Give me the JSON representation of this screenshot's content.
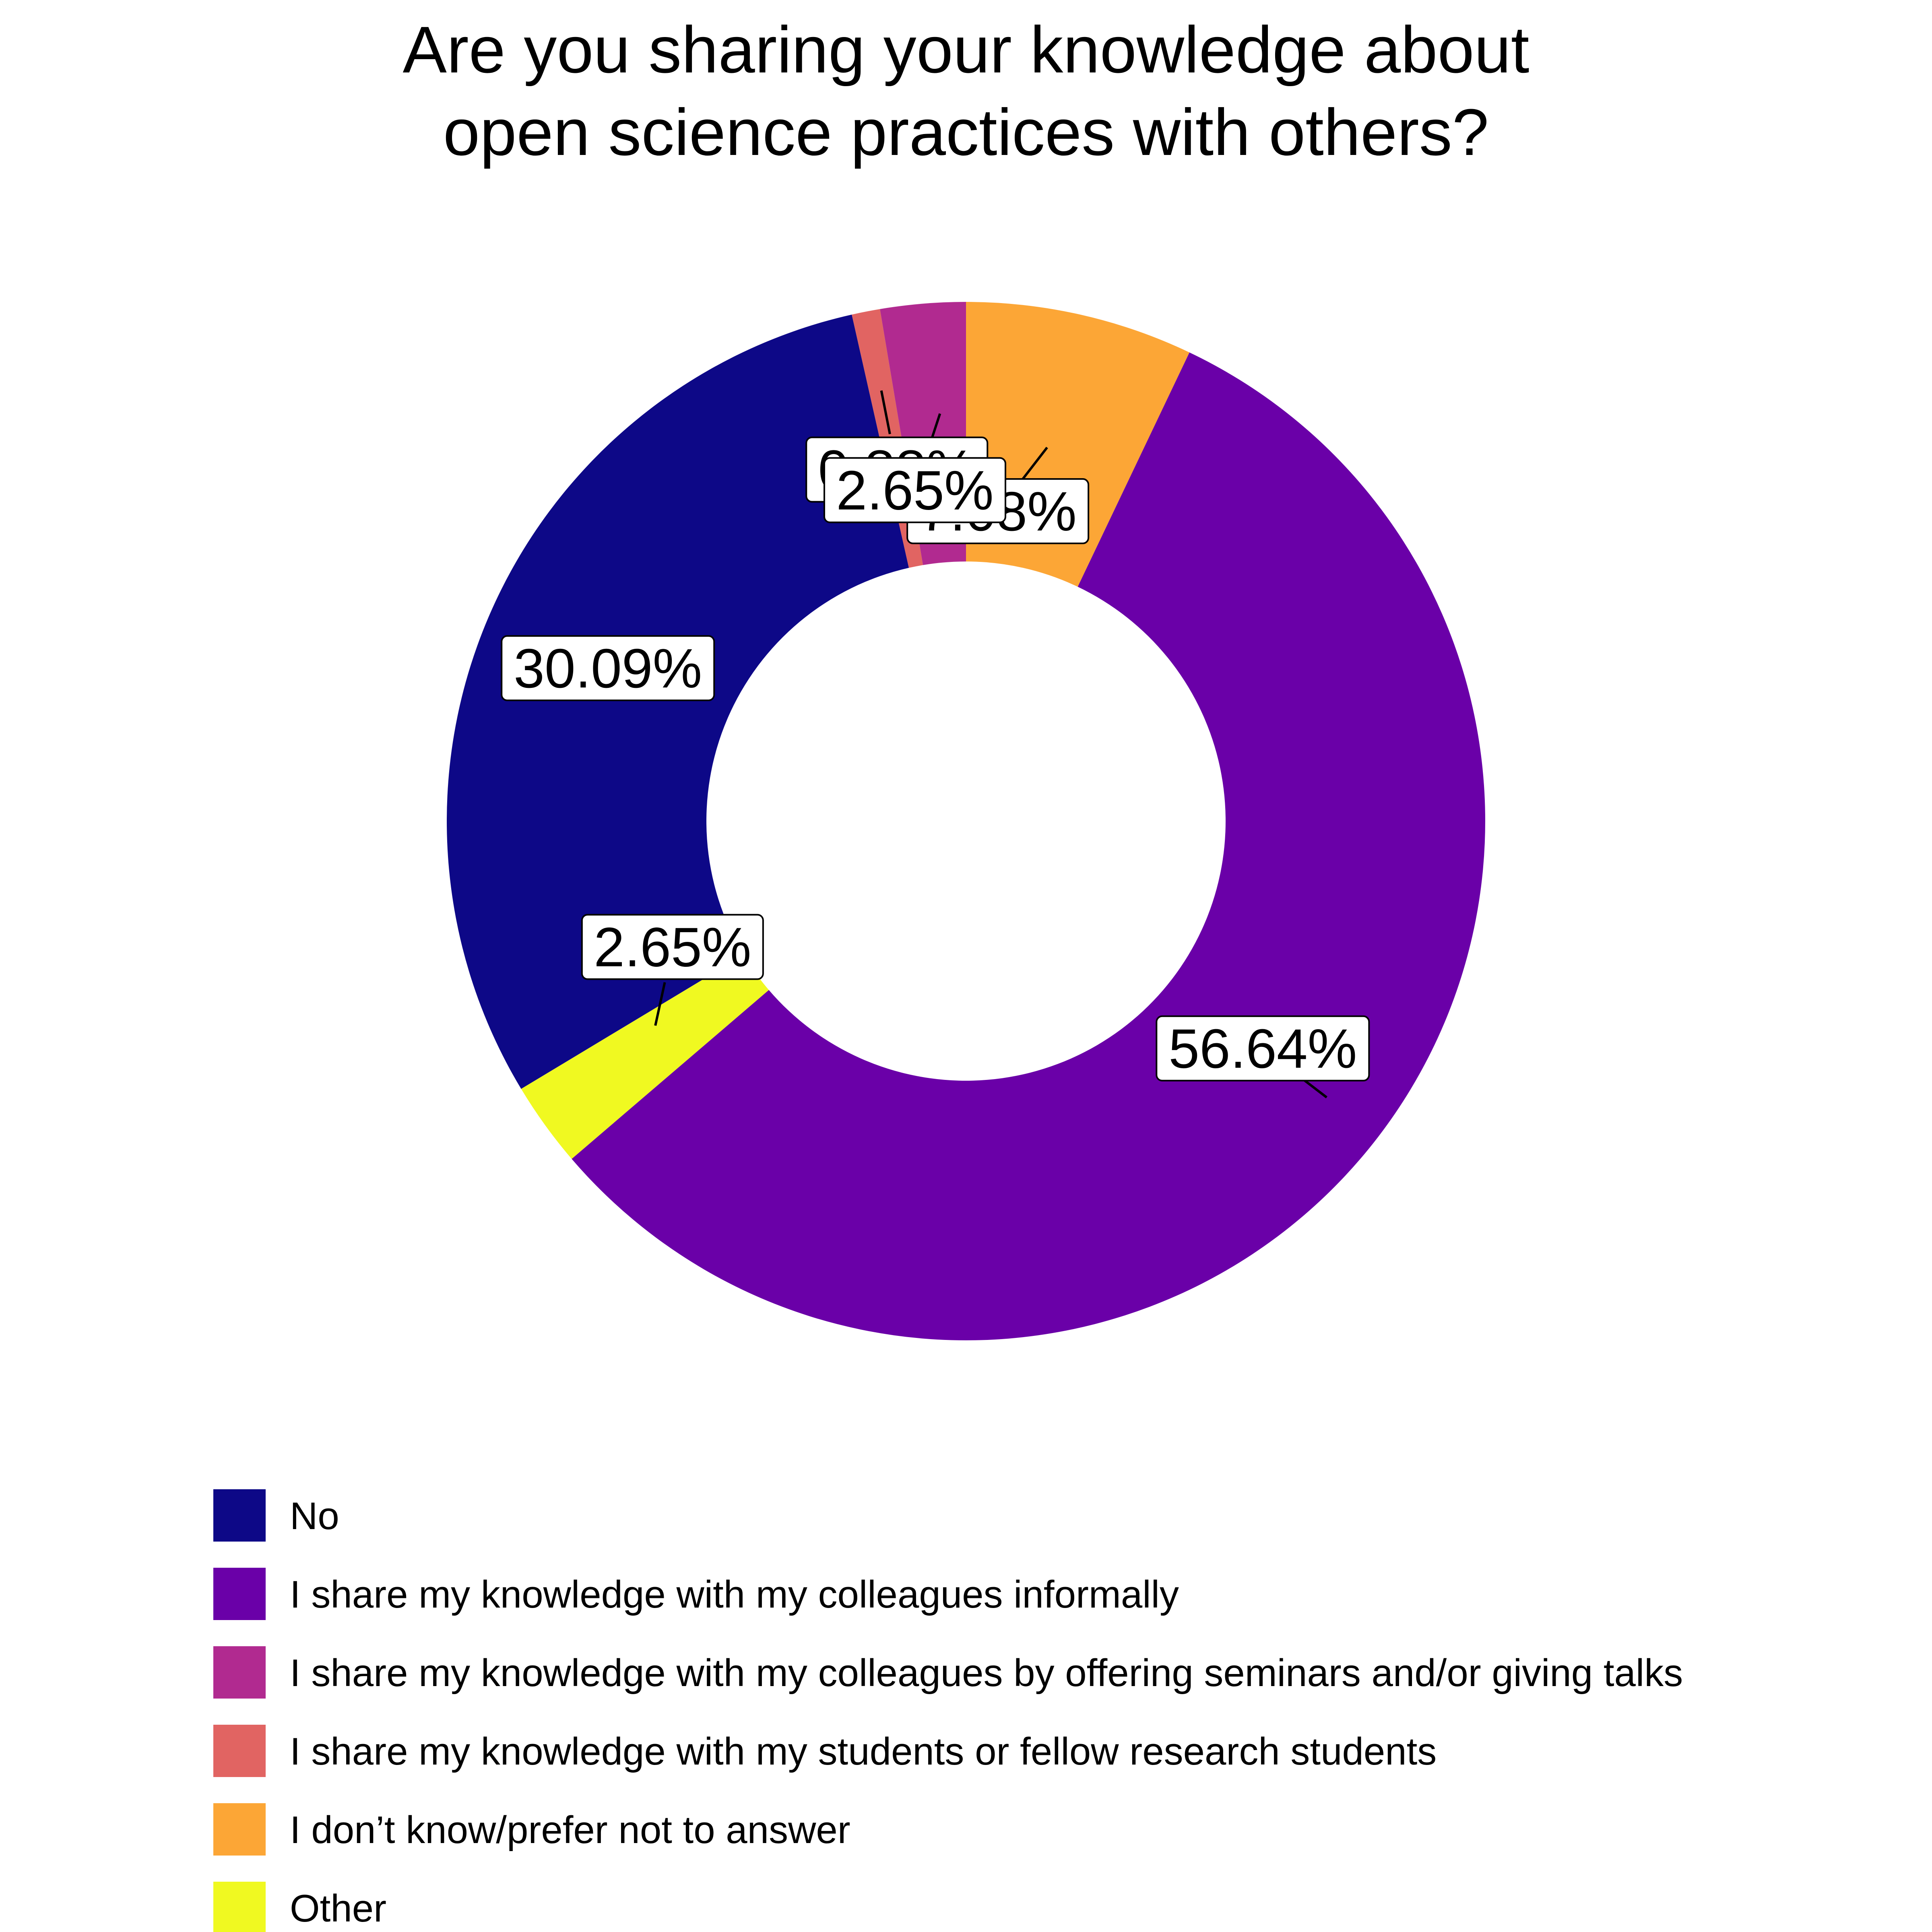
{
  "chart_data": {
    "type": "pie",
    "donut": true,
    "title": "Are you sharing your knowledge about open science practices with others?",
    "title_lines": [
      "Are you sharing your knowledge about",
      "open science practices with others?"
    ],
    "unit": "%",
    "legend_position": "bottom-left",
    "slices": [
      {
        "label": "No",
        "value": 30.09,
        "display": "30.09%",
        "color": "#0d0887"
      },
      {
        "label": "I share my knowledge with my colleagues informally",
        "value": 56.64,
        "display": "56.64%",
        "color": "#6a00a8"
      },
      {
        "label": "I share my knowledge with my colleagues by offering seminars and/or giving talks",
        "value": 2.65,
        "display": "2.65%",
        "color": "#b12a90"
      },
      {
        "label": "I share my knowledge with my students or fellow research students",
        "value": 0.88,
        "display": "0.88%",
        "color": "#e16462"
      },
      {
        "label": "I don’t know/prefer not to answer",
        "value": 7.08,
        "display": "7.08%",
        "color": "#fca636"
      },
      {
        "label": "Other",
        "value": 2.65,
        "display": "2.65%",
        "color": "#f0f921"
      }
    ],
    "clockwise_order_from_top": [
      "I don’t know/prefer not to answer",
      "I share my knowledge with my colleagues informally",
      "Other",
      "No",
      "I share my knowledge with my students or fellow research students",
      "I share my knowledge with my colleagues by offering seminars and/or giving talks"
    ]
  }
}
